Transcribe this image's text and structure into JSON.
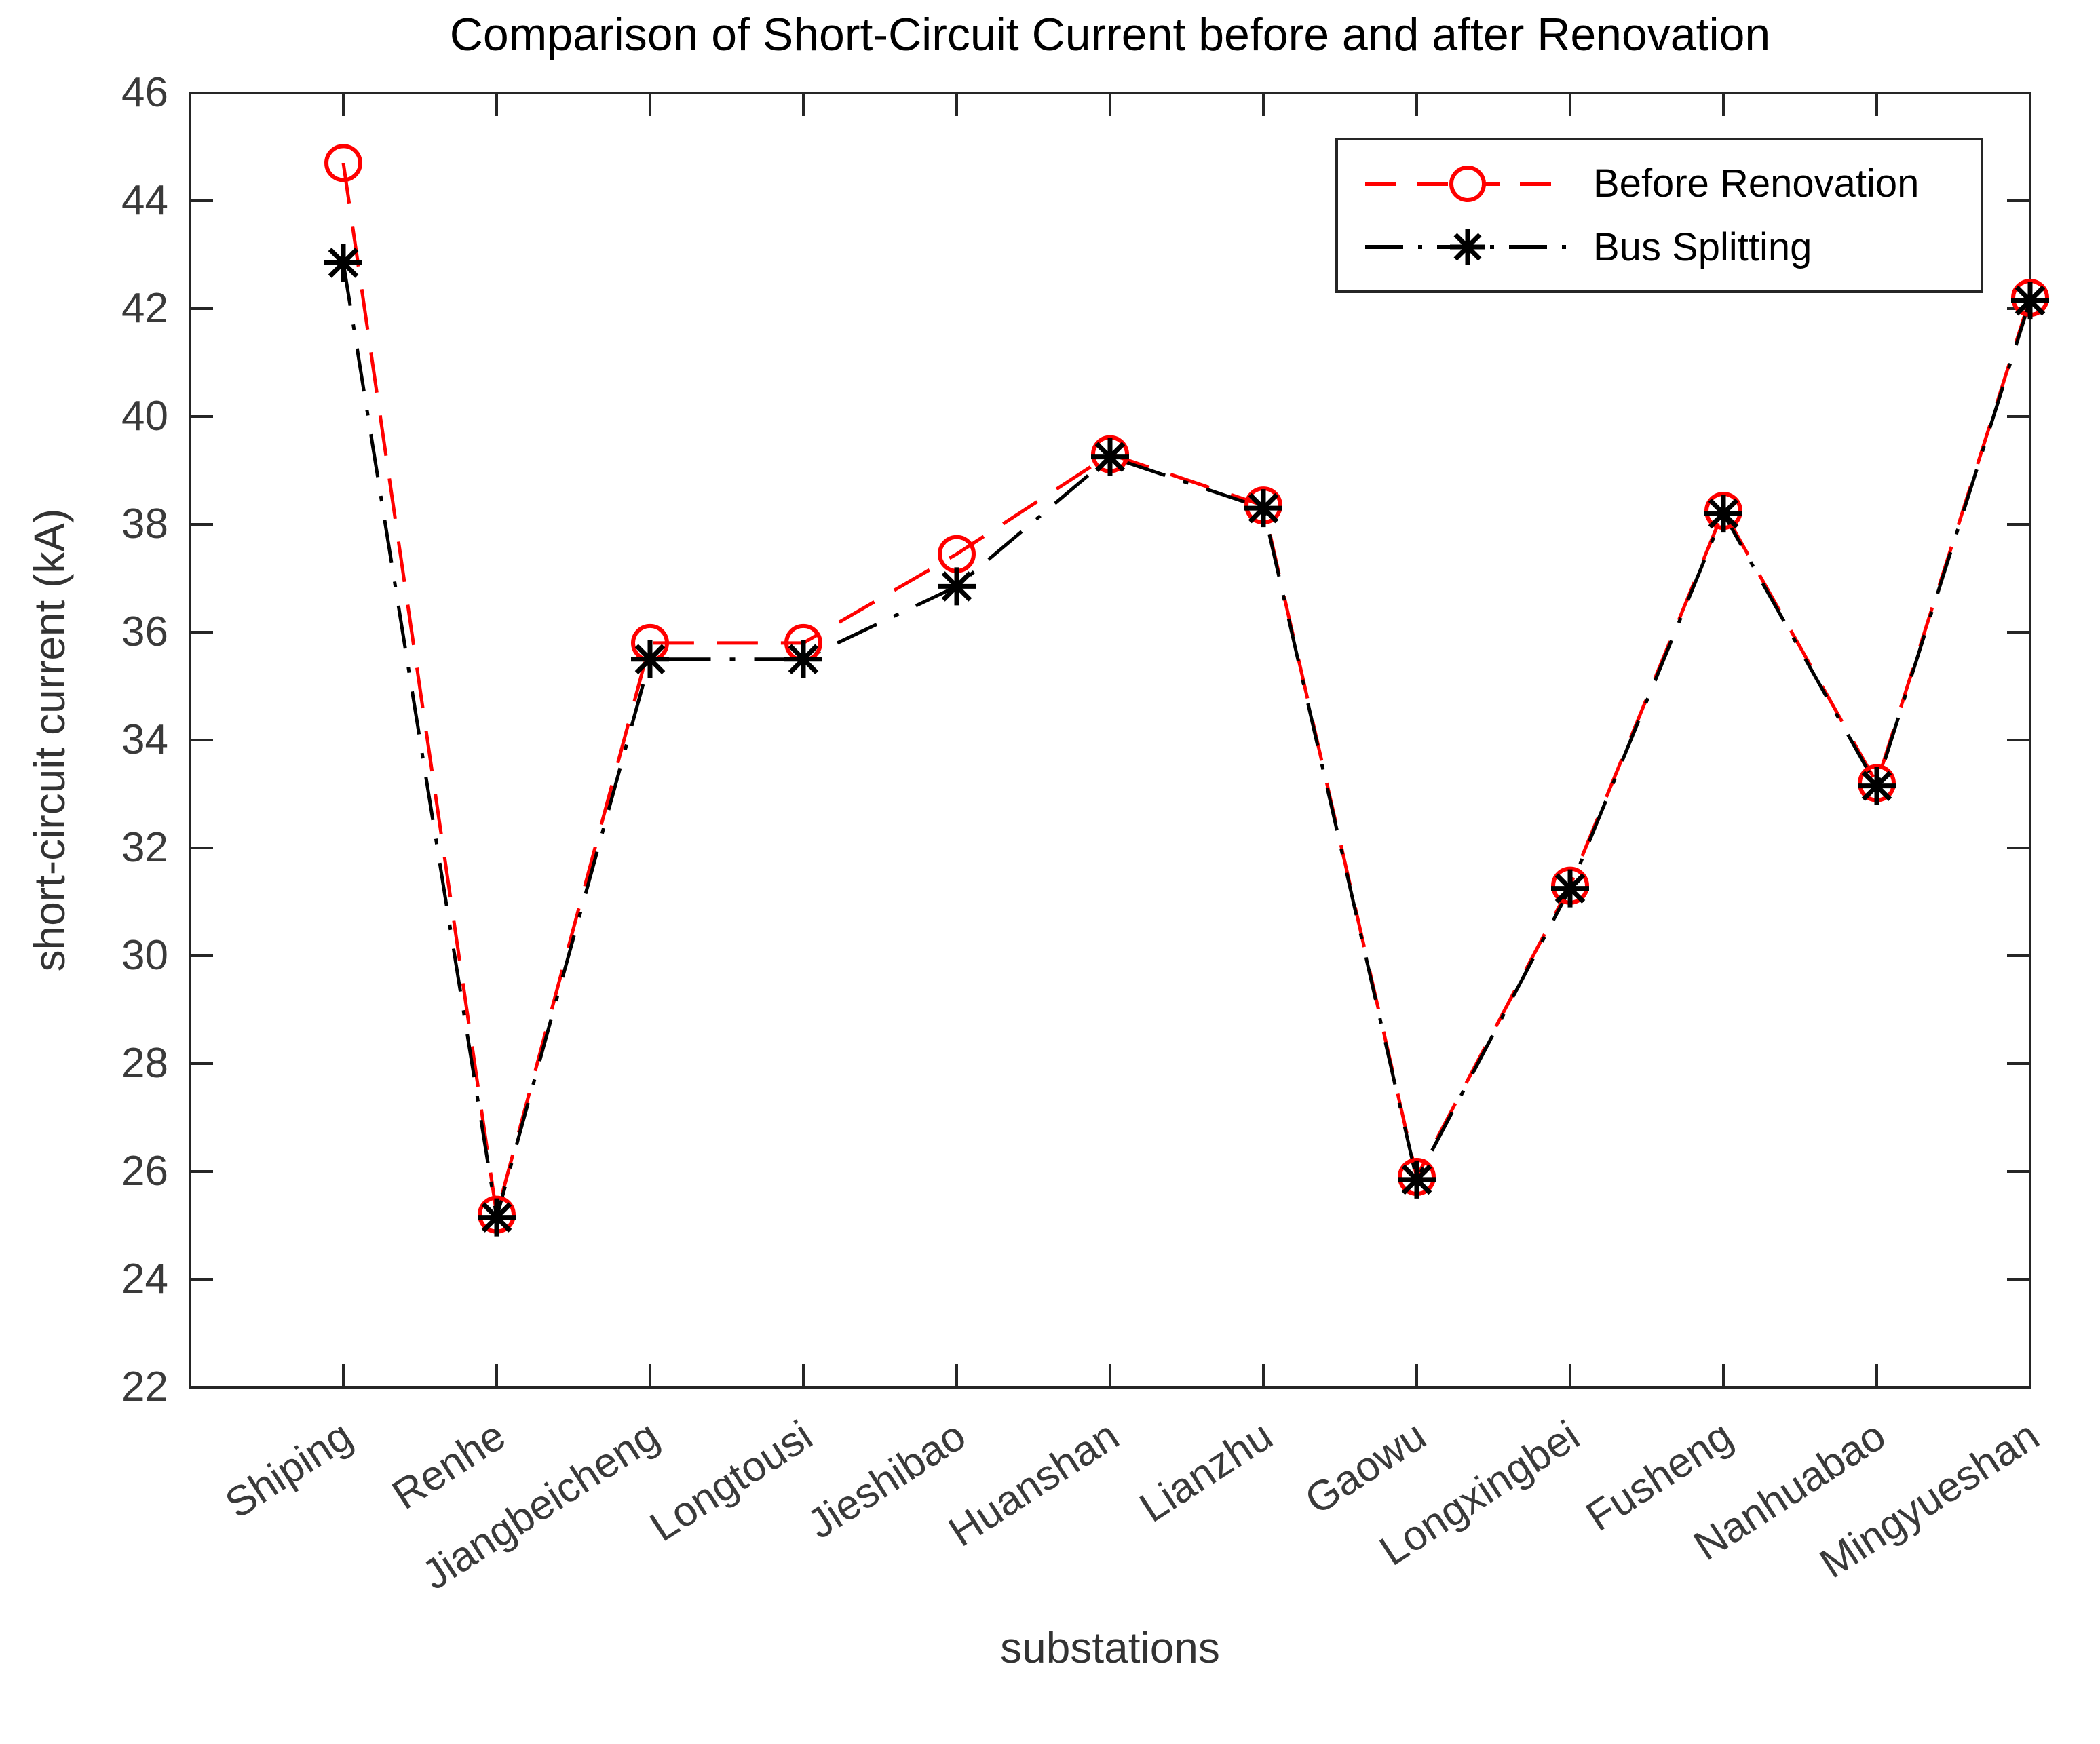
{
  "figure": {
    "title": "Comparison of Short-Circuit Current before and after Renovation",
    "xlabel": "substations",
    "ylabel": "short-circuit current (kA)",
    "legend": {
      "position": "top-right",
      "entries": [
        {
          "label": "Before Renovation",
          "color": "#ff0000",
          "line_style": "dashed",
          "marker": "circle"
        },
        {
          "label": "Bus Splitting",
          "color": "#000000",
          "line_style": "dash-dot",
          "marker": "asterisk"
        }
      ]
    },
    "colors": {
      "series1": "#ff0000",
      "series2": "#000000",
      "axis": "#262626",
      "tick_text": "#3a3a3a"
    }
  },
  "chart_data": {
    "type": "line",
    "title": "Comparison of Short-Circuit Current before and after Renovation",
    "xlabel": "substations",
    "ylabel": "short-circuit current (kA)",
    "categories": [
      "Shiping",
      "Renhe",
      "Jiangbeicheng",
      "Longtousi",
      "Jieshibao",
      "Huanshan",
      "Lianzhu",
      "Gaowu",
      "Longxingbei",
      "Fusheng",
      "Nanhuabao",
      "Mingyueshan"
    ],
    "series": [
      {
        "name": "Before Renovation",
        "color": "#ff0000",
        "line_style": "dashed",
        "marker": "circle",
        "values": [
          44.7,
          25.2,
          35.8,
          35.8,
          37.45,
          39.3,
          38.35,
          25.9,
          31.3,
          38.25,
          33.2,
          42.2
        ]
      },
      {
        "name": "Bus Splitting",
        "color": "#000000",
        "line_style": "dash-dot",
        "marker": "asterisk",
        "values": [
          42.85,
          25.15,
          35.5,
          35.5,
          36.85,
          39.25,
          38.3,
          25.85,
          31.25,
          38.2,
          33.15,
          42.15
        ]
      }
    ],
    "ylim": [
      22,
      46
    ],
    "ytick_step": 2,
    "yticks": [
      46,
      44,
      42,
      40,
      38,
      36,
      34,
      32,
      30,
      28,
      26,
      24,
      22
    ],
    "grid": false,
    "legend_position": "top-right"
  }
}
